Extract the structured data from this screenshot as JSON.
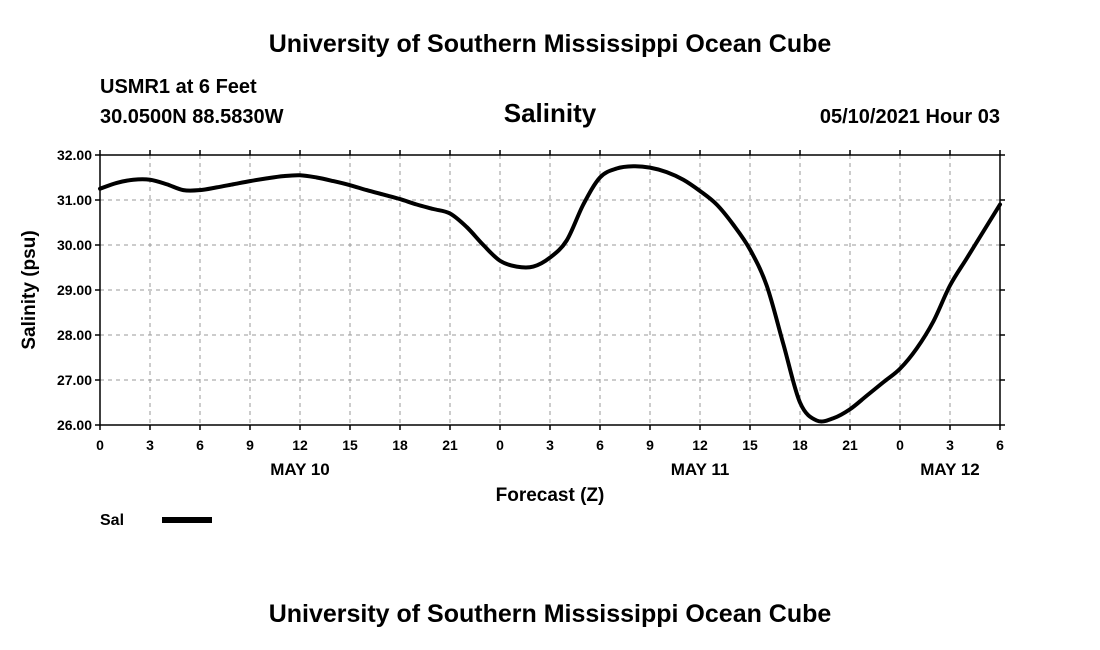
{
  "header": {
    "top_title": "University of Southern Mississippi Ocean Cube",
    "bottom_title": "University of Southern Mississippi Ocean Cube",
    "station": "USMR1 at 6 Feet",
    "coords": "30.0500N  88.5830W",
    "datetime": "05/10/2021 Hour 03"
  },
  "chart_data": {
    "type": "line",
    "title": "Salinity",
    "ylabel": "Salinity (psu)",
    "xlabel": "Forecast (Z)",
    "ylim": [
      26.0,
      32.0
    ],
    "y_ticks": [
      "32.00",
      "31.00",
      "30.00",
      "29.00",
      "28.00",
      "27.00",
      "26.00"
    ],
    "x_range_hours": [
      0,
      54
    ],
    "x_tick_labels": [
      "0",
      "3",
      "6",
      "9",
      "12",
      "15",
      "18",
      "21",
      "0",
      "3",
      "6",
      "9",
      "12",
      "15",
      "18",
      "21",
      "0",
      "3",
      "6"
    ],
    "date_labels": [
      {
        "label": "MAY 10",
        "hour": 12
      },
      {
        "label": "MAY 11",
        "hour": 36
      },
      {
        "label": "MAY 12",
        "hour": 51
      }
    ],
    "grid": true,
    "legend": [
      {
        "label": "Sal",
        "color": "#000000"
      }
    ],
    "series": [
      {
        "name": "Sal",
        "color": "#000000",
        "x": [
          0,
          1,
          2,
          3,
          4,
          5,
          6,
          7,
          8,
          9,
          10,
          11,
          12,
          13,
          14,
          15,
          16,
          17,
          18,
          19,
          20,
          21,
          22,
          23,
          24,
          25,
          26,
          27,
          28,
          29,
          30,
          31,
          32,
          33,
          34,
          35,
          36,
          37,
          38,
          39,
          40,
          41,
          42,
          43,
          44,
          45,
          46,
          47,
          48,
          49,
          50,
          51,
          52,
          53,
          54
        ],
        "y": [
          31.25,
          31.38,
          31.45,
          31.45,
          31.35,
          31.22,
          31.22,
          31.28,
          31.35,
          31.42,
          31.48,
          31.53,
          31.55,
          31.5,
          31.42,
          31.33,
          31.22,
          31.12,
          31.02,
          30.9,
          30.8,
          30.7,
          30.4,
          30.0,
          29.65,
          29.52,
          29.52,
          29.72,
          30.1,
          30.9,
          31.5,
          31.7,
          31.75,
          31.72,
          31.62,
          31.45,
          31.2,
          30.9,
          30.45,
          29.9,
          29.1,
          27.8,
          26.5,
          26.1,
          26.15,
          26.35,
          26.65,
          26.95,
          27.25,
          27.7,
          28.3,
          29.1,
          29.7,
          30.3,
          30.9
        ]
      }
    ]
  }
}
